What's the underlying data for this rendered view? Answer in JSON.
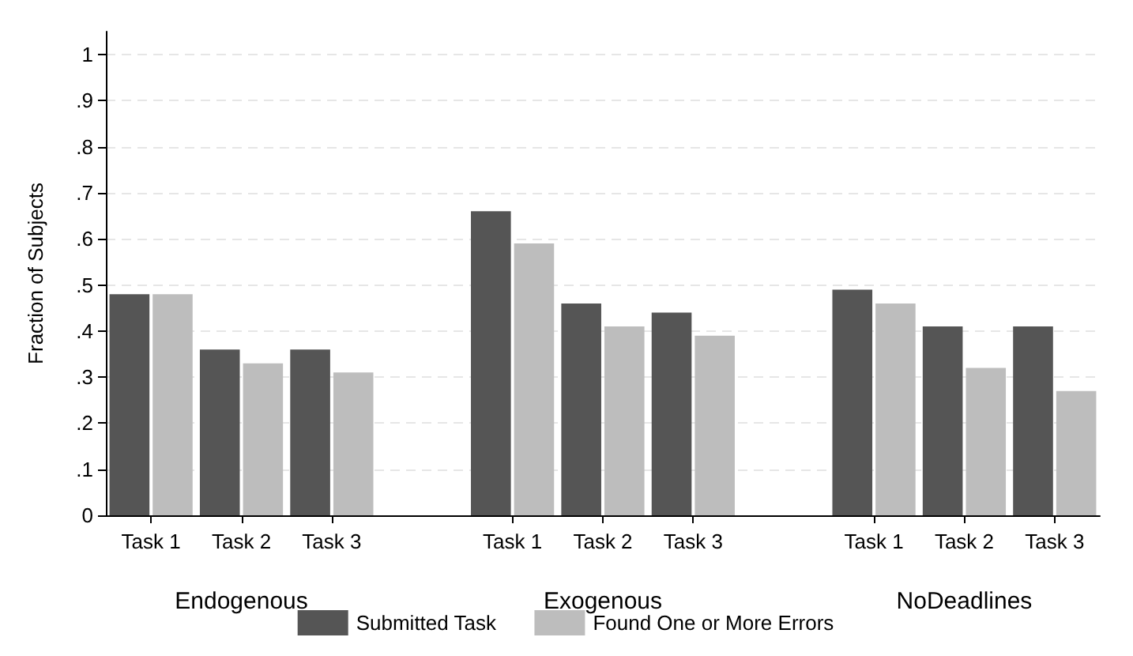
{
  "chart_data": {
    "type": "bar",
    "ylabel": "Fraction of Subjects",
    "categories": [
      "Task 1",
      "Task 2",
      "Task 3",
      null,
      "Task 1",
      "Task 2",
      "Task 3",
      null,
      "Task 1",
      "Task 2",
      "Task 3"
    ],
    "series": [
      {
        "name": "Submitted Task",
        "color": "#555555",
        "values": [
          0.48,
          0.36,
          0.36,
          null,
          0.66,
          0.46,
          0.44,
          null,
          0.49,
          0.41,
          0.41
        ]
      },
      {
        "name": "Found One or More Errors",
        "color": "#bdbdbd",
        "values": [
          0.48,
          0.33,
          0.31,
          null,
          0.59,
          0.41,
          0.39,
          null,
          0.46,
          0.32,
          0.27
        ]
      }
    ],
    "annotations": [
      "Endogenous",
      "Exogenous",
      "NoDeadlines"
    ],
    "ylim": [
      0,
      1.05
    ],
    "yticks": [
      0,
      {
        "value": 0.1,
        "label": ".1"
      },
      {
        "value": 0.2,
        "label": ".2"
      },
      {
        "value": 0.3,
        "label": ".3"
      },
      {
        "value": 0.4,
        "label": ".4"
      },
      {
        "value": 0.5,
        "label": ".5"
      },
      {
        "value": 0.6,
        "label": ".6"
      },
      {
        "value": 0.7,
        "label": ".7"
      },
      {
        "value": 0.8,
        "label": ".8"
      },
      {
        "value": 0.9,
        "label": ".9"
      },
      1
    ],
    "grid": "y",
    "legend": "bottom"
  }
}
